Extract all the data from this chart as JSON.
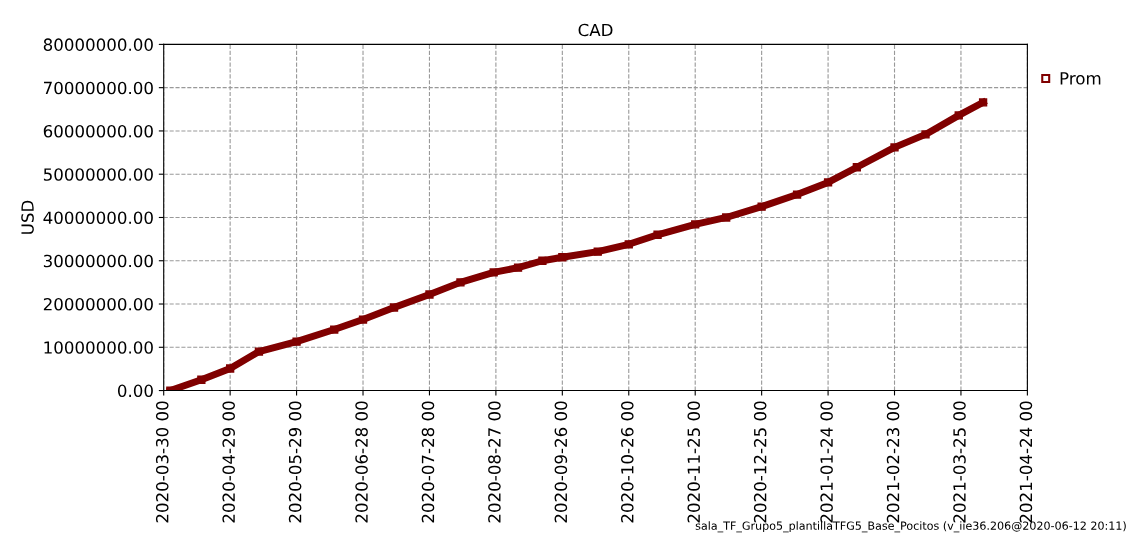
{
  "chart_data": {
    "type": "line",
    "title": "CAD",
    "ylabel": "USD",
    "x": [
      "2020-04-02",
      "2020-04-16",
      "2020-04-29",
      "2020-05-12",
      "2020-05-29",
      "2020-06-15",
      "2020-06-28",
      "2020-07-12",
      "2020-07-28",
      "2020-08-11",
      "2020-08-26",
      "2020-09-06",
      "2020-09-17",
      "2020-09-26",
      "2020-10-12",
      "2020-10-26",
      "2020-11-08",
      "2020-11-25",
      "2020-12-09",
      "2020-12-25",
      "2021-01-10",
      "2021-01-24",
      "2021-02-06",
      "2021-02-23",
      "2021-03-09",
      "2021-03-24",
      "2021-04-04"
    ],
    "series": [
      {
        "name": "Prom",
        "color": "#800000",
        "values": [
          0,
          2500000,
          5100000,
          9000000,
          11300000,
          14100000,
          16400000,
          19200000,
          22200000,
          25000000,
          27300000,
          28400000,
          30000000,
          30800000,
          32100000,
          33800000,
          36000000,
          38400000,
          40000000,
          42500000,
          45300000,
          48100000,
          51600000,
          56200000,
          59200000,
          63600000,
          66600000
        ]
      }
    ],
    "xlim": [
      "2020-03-30",
      "2021-04-24"
    ],
    "xticks": [
      {
        "value": "2020-03-30",
        "label": "2020-03-30 00"
      },
      {
        "value": "2020-04-29",
        "label": "2020-04-29 00"
      },
      {
        "value": "2020-05-29",
        "label": "2020-05-29 00"
      },
      {
        "value": "2020-06-28",
        "label": "2020-06-28 00"
      },
      {
        "value": "2020-07-28",
        "label": "2020-07-28 00"
      },
      {
        "value": "2020-08-27",
        "label": "2020-08-27 00"
      },
      {
        "value": "2020-09-26",
        "label": "2020-09-26 00"
      },
      {
        "value": "2020-10-26",
        "label": "2020-10-26 00"
      },
      {
        "value": "2020-11-25",
        "label": "2020-11-25 00"
      },
      {
        "value": "2020-12-25",
        "label": "2020-12-25 00"
      },
      {
        "value": "2021-01-24",
        "label": "2021-01-24 00"
      },
      {
        "value": "2021-02-23",
        "label": "2021-02-23 00"
      },
      {
        "value": "2021-03-25",
        "label": "2021-03-25 00"
      },
      {
        "value": "2021-04-24",
        "label": "2021-04-24 00"
      }
    ],
    "ylim": [
      0,
      80000000
    ],
    "yticks": [
      {
        "value": 0,
        "label": "0.00"
      },
      {
        "value": 10000000,
        "label": "10000000.00"
      },
      {
        "value": 20000000,
        "label": "20000000.00"
      },
      {
        "value": 30000000,
        "label": "30000000.00"
      },
      {
        "value": 40000000,
        "label": "40000000.00"
      },
      {
        "value": 50000000,
        "label": "50000000.00"
      },
      {
        "value": 60000000,
        "label": "60000000.00"
      },
      {
        "value": 70000000,
        "label": "70000000.00"
      },
      {
        "value": 80000000,
        "label": "80000000.00"
      }
    ],
    "grid": true,
    "legend": "right",
    "marker": "square",
    "line_style": "solid",
    "annotations": [
      "sala_TF_Grupo5_plantillaTFG5_Base_Pocitos (v_iie36.206@2020-06-12 20:11)"
    ]
  }
}
